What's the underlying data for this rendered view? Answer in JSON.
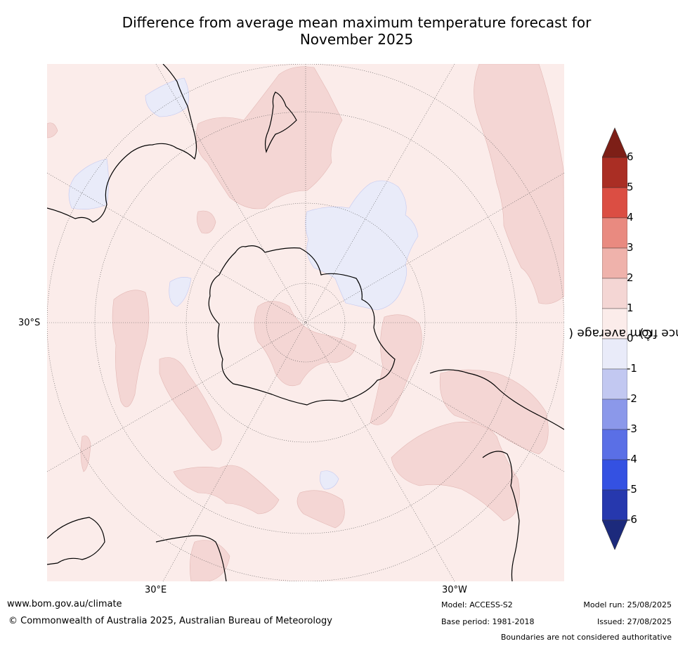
{
  "title": {
    "line1": "Difference from average mean maximum temperature forecast for",
    "line2": "November 2025"
  },
  "map": {
    "projection": "south-polar stereographic",
    "lat_label": "30°S",
    "lon_labels": {
      "east": "30°E",
      "west": "30°W"
    }
  },
  "colorbar": {
    "label": "Difference from average (°C)",
    "label_prefix": "Difference from average (",
    "label_degree": "°",
    "label_suffix": "C)",
    "ticks": [
      "6",
      "5",
      "4",
      "3",
      "2",
      "1",
      "0",
      "-1",
      "-2",
      "-3",
      "-4",
      "-5",
      "-6"
    ],
    "colors_top_to_bottom": [
      "#aa2e24",
      "#db4e43",
      "#e98a80",
      "#efb2ab",
      "#f4d6d4",
      "#fbecea",
      "#e9ebf9",
      "#c2c8f1",
      "#8b98ea",
      "#5a6fe6",
      "#3451e2",
      "#2638ae"
    ],
    "extend_max_color": "#7d1f17",
    "extend_min_color": "#1c2a7c"
  },
  "map_colors": {
    "background_0_to_1": "#fbecea",
    "warm_1_to_2": "#f4d6d4",
    "cool_0_to_-1": "#e9ebf9"
  },
  "footer": {
    "website": "www.bom.gov.au/climate",
    "copyright": "© Commonwealth of Australia 2025, Australian Bureau of Meteorology",
    "model": "Model: ACCESS-S2",
    "base_period": "Base period: 1981-2018",
    "model_run": "Model run: 25/08/2025",
    "issued": "Issued: 27/08/2025",
    "disclaimer": "Boundaries are not considered authoritative"
  }
}
